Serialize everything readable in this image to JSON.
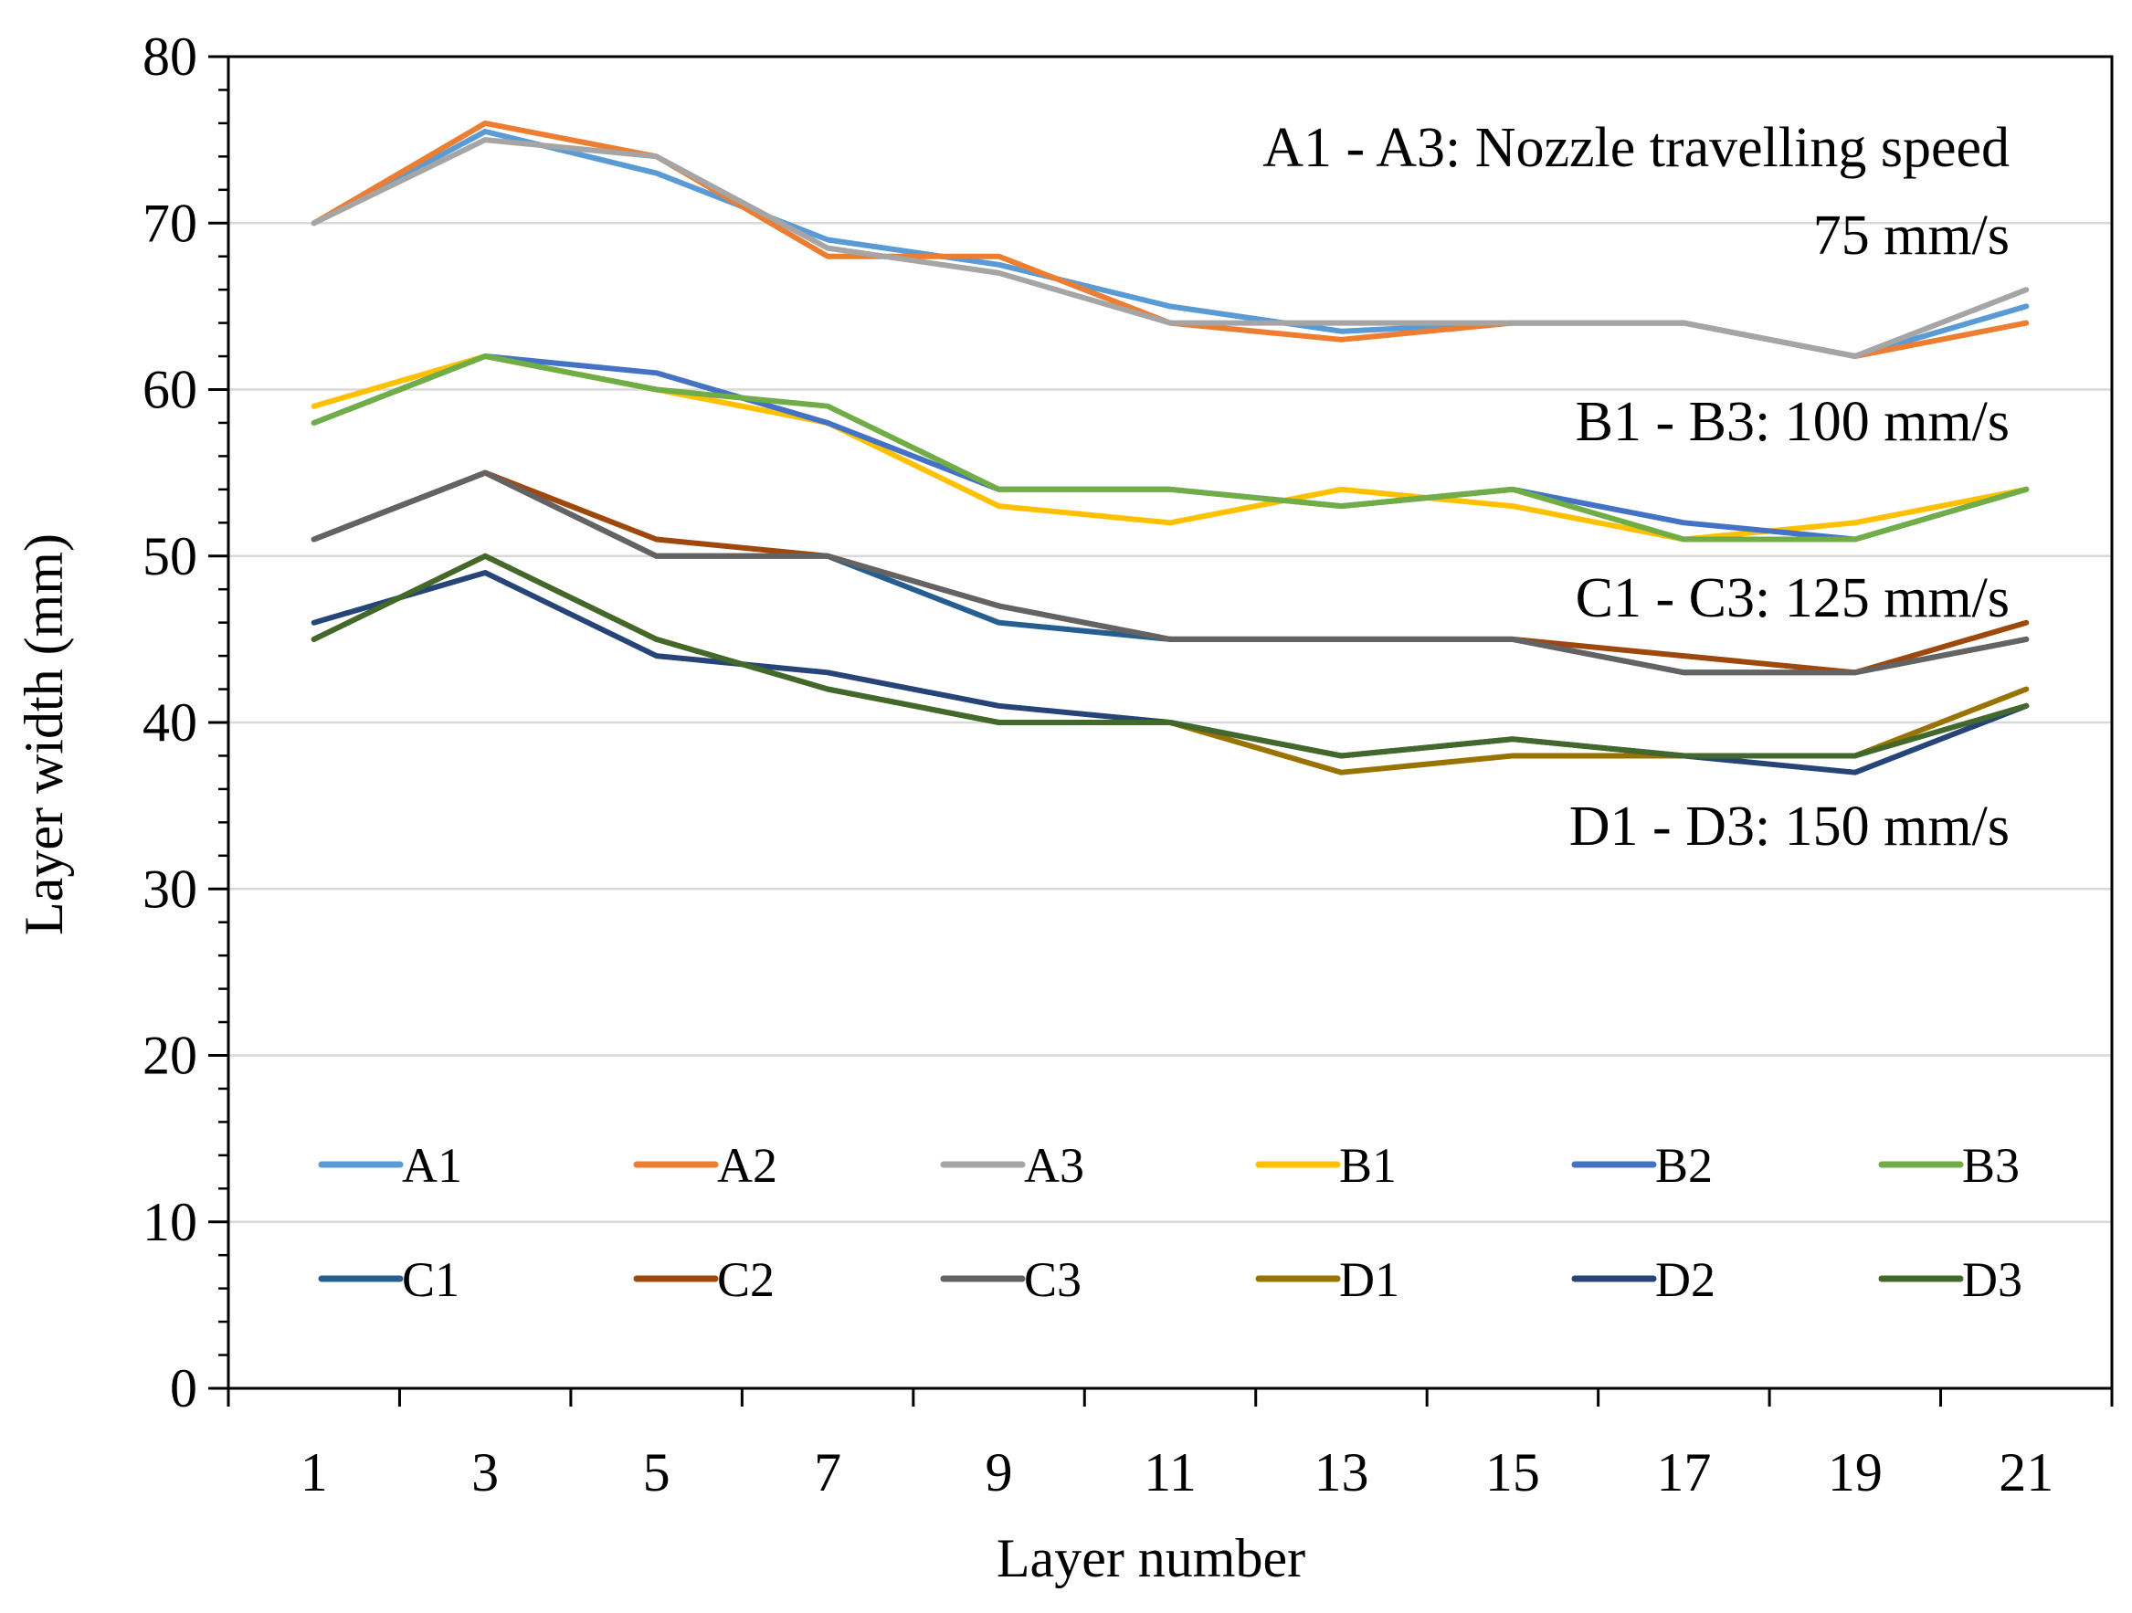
{
  "chart_data": {
    "type": "line",
    "title": "",
    "xlabel": "Layer number",
    "ylabel": "Layer width (mm)",
    "x": [
      1,
      3,
      5,
      7,
      9,
      11,
      13,
      15,
      17,
      19,
      21
    ],
    "xlim": [
      0,
      22
    ],
    "ylim": [
      0,
      80
    ],
    "yticks": [
      0,
      10,
      20,
      30,
      40,
      50,
      60,
      70,
      80
    ],
    "xticks": [
      1,
      3,
      5,
      7,
      9,
      11,
      13,
      15,
      17,
      19,
      21
    ],
    "grid": true,
    "legend_position": "bottom-inside",
    "series": [
      {
        "name": "A1",
        "color": "#5B9BD5",
        "values": [
          70,
          75.5,
          73,
          69,
          67.5,
          65,
          63.5,
          64,
          64,
          62,
          65
        ]
      },
      {
        "name": "A2",
        "color": "#ED7D31",
        "values": [
          70,
          76,
          74,
          68,
          68,
          64,
          63,
          64,
          64,
          62,
          64
        ]
      },
      {
        "name": "A3",
        "color": "#A5A5A5",
        "values": [
          70,
          75,
          74,
          68.5,
          67,
          64,
          64,
          64,
          64,
          62,
          66
        ]
      },
      {
        "name": "B1",
        "color": "#FFC000",
        "values": [
          59,
          62,
          60,
          58,
          53,
          52,
          54,
          53,
          51,
          52,
          54
        ]
      },
      {
        "name": "B2",
        "color": "#4472C4",
        "values": [
          58,
          62,
          61,
          58,
          54,
          54,
          53,
          54,
          52,
          51,
          54
        ]
      },
      {
        "name": "B3",
        "color": "#70AD47",
        "values": [
          58,
          62,
          60,
          59,
          54,
          54,
          53,
          54,
          51,
          51,
          54
        ]
      },
      {
        "name": "C1",
        "color": "#255E91",
        "values": [
          51,
          55,
          50,
          50,
          46,
          45,
          45,
          45,
          43,
          43,
          45
        ]
      },
      {
        "name": "C2",
        "color": "#9E480E",
        "values": [
          51,
          55,
          51,
          50,
          47,
          45,
          45,
          45,
          44,
          43,
          46
        ]
      },
      {
        "name": "C3",
        "color": "#636363",
        "values": [
          51,
          55,
          50,
          50,
          47,
          45,
          45,
          45,
          43,
          43,
          45
        ]
      },
      {
        "name": "D1",
        "color": "#997300",
        "values": [
          45,
          50,
          45,
          42,
          40,
          40,
          37,
          38,
          38,
          38,
          42
        ]
      },
      {
        "name": "D2",
        "color": "#264478",
        "values": [
          46,
          49,
          44,
          43,
          41,
          40,
          38,
          39,
          38,
          37,
          41
        ]
      },
      {
        "name": "D3",
        "color": "#43682B",
        "values": [
          45,
          50,
          45,
          42,
          40,
          40,
          38,
          39,
          38,
          38,
          41
        ]
      }
    ],
    "annotations": [
      {
        "id": "a-group",
        "lines": [
          "A1 - A3: Nozzle travelling speed",
          "75 mm/s"
        ]
      },
      {
        "id": "b-group",
        "lines": [
          "B1 - B3: 100 mm/s"
        ]
      },
      {
        "id": "c-group",
        "lines": [
          "C1 - C3: 125 mm/s"
        ]
      },
      {
        "id": "d-group",
        "lines": [
          "D1 - D3: 150 mm/s"
        ]
      }
    ]
  }
}
